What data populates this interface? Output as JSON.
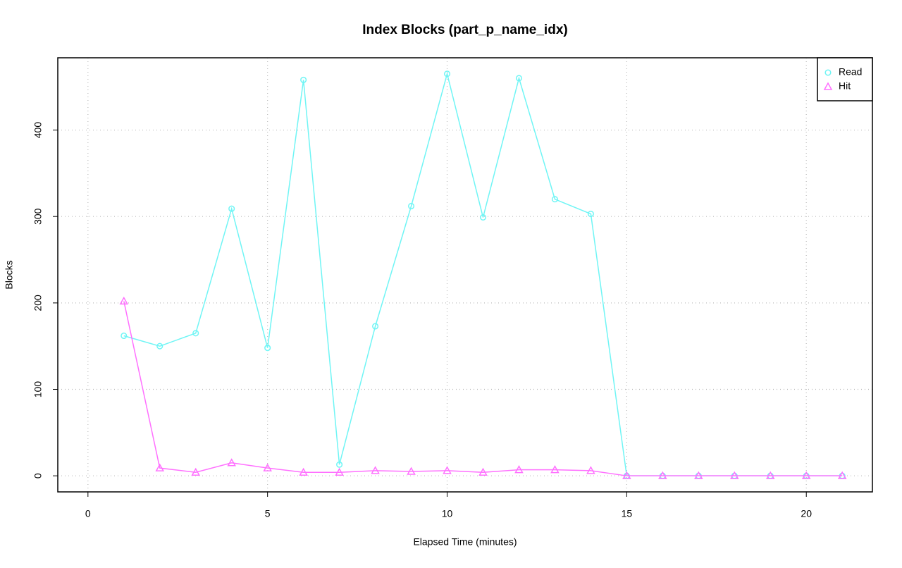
{
  "chart_data": {
    "type": "line",
    "title": "Index Blocks (part_p_name_idx)",
    "x_label": "Elapsed Time (minutes)",
    "y_label": "Blocks",
    "x": [
      1,
      2,
      3,
      4,
      5,
      6,
      7,
      8,
      9,
      10,
      11,
      12,
      13,
      14,
      15,
      16,
      17,
      18,
      19,
      20,
      21
    ],
    "series": [
      {
        "name": "Read",
        "color": "#70f5f5",
        "marker": "circle",
        "values": [
          162,
          150,
          165,
          309,
          148,
          458,
          13,
          173,
          312,
          465,
          299,
          460,
          320,
          303,
          0,
          0,
          0,
          0,
          0,
          0,
          0
        ]
      },
      {
        "name": "Hit",
        "color": "#ff70ff",
        "marker": "triangle",
        "values": [
          202,
          9,
          4,
          15,
          9,
          4,
          4,
          6,
          5,
          6,
          4,
          7,
          7,
          6,
          0,
          0,
          0,
          0,
          0,
          0,
          0
        ]
      }
    ],
    "xlim": [
      -0.84,
      21.84
    ],
    "xticks": [
      0,
      5,
      10,
      15,
      20
    ],
    "ylim": [
      -18.6,
      483.6
    ],
    "yticks": [
      0,
      100,
      200,
      300,
      400
    ],
    "grid": true,
    "legend": "top-right"
  }
}
